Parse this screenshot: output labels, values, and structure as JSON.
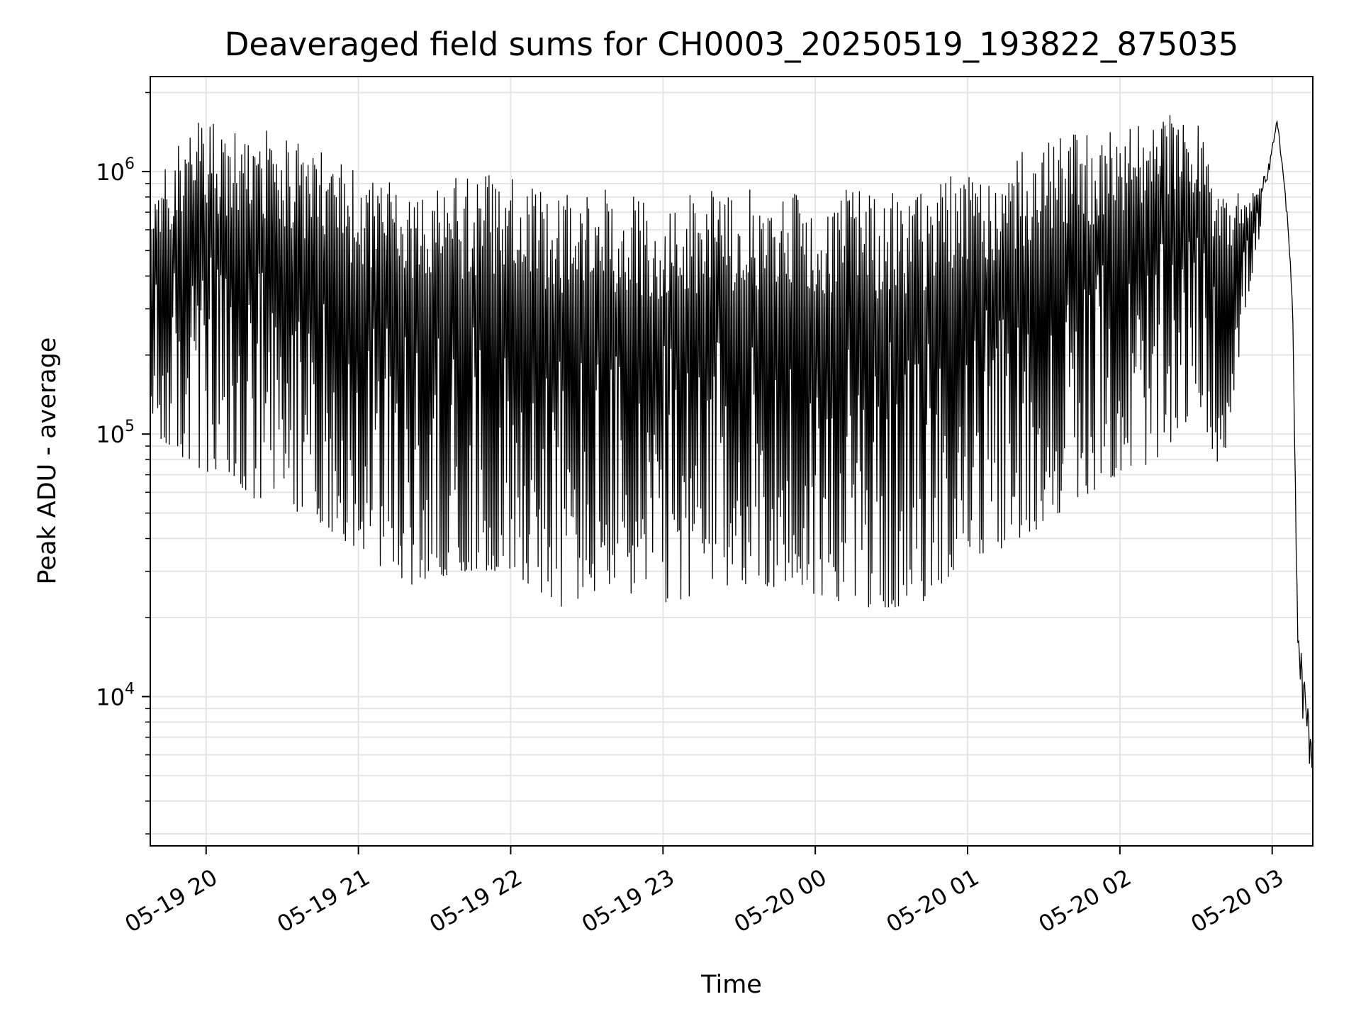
{
  "chart_data": {
    "type": "line",
    "title": "Deaveraged field sums for CH0003_20250519_193822_875035",
    "xlabel": "Time",
    "ylabel": "Peak ADU - average",
    "yscale": "log",
    "ylim": [
      2700,
      2300000
    ],
    "xlim": [
      "2025-05-19 19:38",
      "2025-05-20 03:16"
    ],
    "grid": true,
    "line_color": "#000000",
    "grid_color": "#e5e5e5",
    "x_ticks": [
      {
        "t": "2025-05-19 20:00",
        "label": "05-19 20"
      },
      {
        "t": "2025-05-19 21:00",
        "label": "05-19 21"
      },
      {
        "t": "2025-05-19 22:00",
        "label": "05-19 22"
      },
      {
        "t": "2025-05-19 23:00",
        "label": "05-19 23"
      },
      {
        "t": "2025-05-20 00:00",
        "label": "05-20 00"
      },
      {
        "t": "2025-05-20 01:00",
        "label": "05-20 01"
      },
      {
        "t": "2025-05-20 02:00",
        "label": "05-20 02"
      },
      {
        "t": "2025-05-20 03:00",
        "label": "05-20 03"
      }
    ],
    "y_ticks": [
      {
        "value": 10000,
        "base": "10",
        "exp": "4"
      },
      {
        "value": 100000,
        "base": "10",
        "exp": "5"
      },
      {
        "value": 1000000,
        "base": "10",
        "exp": "6"
      }
    ],
    "series": [
      {
        "description_points": [
          {
            "t": "2025-05-19 19:38",
            "top": 800000,
            "bottom": 90000
          },
          {
            "t": "2025-05-19 19:50",
            "top": 1400000,
            "bottom": 70000
          },
          {
            "t": "2025-05-19 20:00",
            "top": 1600000,
            "bottom": 60000
          },
          {
            "t": "2025-05-19 20:20",
            "top": 1500000,
            "bottom": 45000
          },
          {
            "t": "2025-05-19 20:40",
            "top": 1300000,
            "bottom": 42000
          },
          {
            "t": "2025-05-19 21:00",
            "top": 1000000,
            "bottom": 30000
          },
          {
            "t": "2025-05-19 21:20",
            "top": 900000,
            "bottom": 22000
          },
          {
            "t": "2025-05-19 21:40",
            "top": 950000,
            "bottom": 25000
          },
          {
            "t": "2025-05-19 22:00",
            "top": 1000000,
            "bottom": 25000
          },
          {
            "t": "2025-05-19 22:20",
            "top": 900000,
            "bottom": 18000
          },
          {
            "t": "2025-05-19 22:40",
            "top": 850000,
            "bottom": 22000
          },
          {
            "t": "2025-05-19 23:00",
            "top": 850000,
            "bottom": 18000
          },
          {
            "t": "2025-05-19 23:20",
            "top": 850000,
            "bottom": 22000
          },
          {
            "t": "2025-05-19 23:40",
            "top": 900000,
            "bottom": 22000
          },
          {
            "t": "2025-05-20 00:00",
            "top": 900000,
            "bottom": 20000
          },
          {
            "t": "2025-05-20 00:20",
            "top": 850000,
            "bottom": 18000
          },
          {
            "t": "2025-05-20 00:40",
            "top": 900000,
            "bottom": 18000
          },
          {
            "t": "2025-05-20 01:00",
            "top": 1000000,
            "bottom": 28000
          },
          {
            "t": "2025-05-20 01:20",
            "top": 1200000,
            "bottom": 32000
          },
          {
            "t": "2025-05-20 01:40",
            "top": 1400000,
            "bottom": 45000
          },
          {
            "t": "2025-05-20 02:00",
            "top": 1500000,
            "bottom": 60000
          },
          {
            "t": "2025-05-20 02:20",
            "top": 1650000,
            "bottom": 70000
          },
          {
            "t": "2025-05-20 02:30",
            "top": 1600000,
            "bottom": 120000
          },
          {
            "t": "2025-05-20 02:40",
            "top": 900000,
            "bottom": 60000
          },
          {
            "t": "2025-05-20 02:50",
            "top": 800000,
            "bottom": 300000
          },
          {
            "t": "2025-05-20 02:58",
            "top": 1000000,
            "bottom": 800000
          },
          {
            "t": "2025-05-20 03:02",
            "top": 1600000,
            "bottom": 1500000
          },
          {
            "t": "2025-05-20 03:06",
            "top": 700000,
            "bottom": 600000
          },
          {
            "t": "2025-05-20 03:08",
            "top": 330000,
            "bottom": 300000
          },
          {
            "t": "2025-05-20 03:10",
            "top": 20000,
            "bottom": 13000
          },
          {
            "t": "2025-05-20 03:13",
            "top": 11000,
            "bottom": 4000
          },
          {
            "t": "2025-05-20 03:16",
            "top": 8000,
            "bottom": 3600
          }
        ]
      }
    ]
  }
}
